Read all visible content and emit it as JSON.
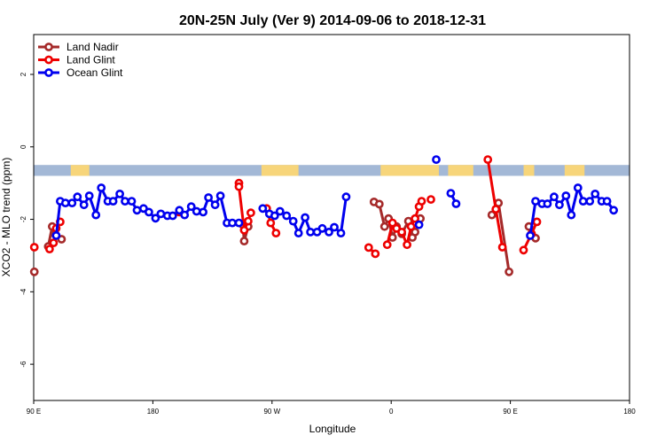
{
  "chart_data": {
    "type": "line",
    "title": "20N-25N July (Ver 9)   2014-09-06 to 2018-12-31",
    "xlabel": "Longitude",
    "ylabel": "XCO2 - MLO trend (ppm)",
    "x_ticks": [
      {
        "value": 90,
        "label": "90 E"
      },
      {
        "value": 180,
        "label": "180"
      },
      {
        "value": 270,
        "label": "90 W"
      },
      {
        "value": 360,
        "label": "0"
      },
      {
        "value": 450,
        "label": "90 E"
      },
      {
        "value": 540,
        "label": "180"
      }
    ],
    "y_ticks": [
      {
        "value": 2,
        "label": "2"
      },
      {
        "value": 0,
        "label": "0"
      },
      {
        "value": -2,
        "label": "-2"
      },
      {
        "value": -4,
        "label": "-4"
      },
      {
        "value": -6,
        "label": "-6"
      }
    ],
    "xlim": [
      90,
      540
    ],
    "ylim": [
      -7,
      3.1
    ],
    "map_band": {
      "y_top": -0.5,
      "y_bottom": -0.8,
      "ocean_color": "#a3b8d6",
      "land_color": "#f7d57a"
    },
    "legend_position": "top-left",
    "series": [
      {
        "name": "Land Nadir",
        "color": "#a52a2a",
        "segments": [
          [
            [
              90.5,
              -3.45
            ]
          ],
          [
            [
              101,
              -2.75
            ],
            [
              104,
              -2.2
            ],
            [
              106,
              -2.4
            ],
            [
              111,
              -2.55
            ]
          ],
          [
            [
              248,
              -2.15
            ],
            [
              249,
              -2.6
            ],
            [
              252,
              -2.2
            ]
          ],
          [
            [
              347,
              -1.52
            ],
            [
              351,
              -1.58
            ],
            [
              355,
              -2.2
            ],
            [
              358,
              -1.98
            ],
            [
              361,
              -2.5
            ],
            [
              364,
              -2.2
            ],
            [
              368,
              -2.4
            ],
            [
              373,
              -2.05
            ],
            [
              376,
              -2.5
            ],
            [
              378,
              -2.35
            ],
            [
              382,
              -1.98
            ]
          ],
          [
            [
              436,
              -1.88
            ],
            [
              441,
              -1.55
            ],
            [
              449,
              -3.45
            ]
          ],
          [
            [
              464,
              -2.2
            ],
            [
              469,
              -2.52
            ]
          ]
        ]
      },
      {
        "name": "Land Glint",
        "color": "#ee0000",
        "segments": [
          [
            [
              90.5,
              -2.77
            ]
          ],
          [
            [
              102,
              -2.82
            ],
            [
              105,
              -2.65
            ],
            [
              107,
              -2.25
            ],
            [
              110,
              -2.07
            ]
          ],
          [
            [
              200,
              -1.8
            ]
          ],
          [
            [
              245,
              -1.0
            ],
            [
              245,
              -1.1
            ],
            [
              249,
              -2.3
            ],
            [
              252,
              -2.05
            ],
            [
              254,
              -1.82
            ]
          ],
          [
            [
              266,
              -1.7
            ],
            [
              269,
              -2.1
            ],
            [
              273,
              -2.38
            ]
          ],
          [
            [
              343,
              -2.78
            ],
            [
              348,
              -2.95
            ]
          ],
          [
            [
              357,
              -2.7
            ],
            [
              361,
              -2.1
            ],
            [
              364,
              -2.25
            ],
            [
              368,
              -2.35
            ],
            [
              372,
              -2.7
            ],
            [
              375,
              -2.2
            ],
            [
              378,
              -1.98
            ],
            [
              381,
              -1.65
            ],
            [
              383,
              -1.5
            ]
          ],
          [
            [
              390,
              -1.45
            ]
          ],
          [
            [
              433,
              -0.35
            ],
            [
              439,
              -1.72
            ],
            [
              444,
              -2.77
            ]
          ],
          [
            [
              460,
              -2.85
            ],
            [
              466,
              -2.4
            ],
            [
              470,
              -2.07
            ]
          ]
        ]
      },
      {
        "name": "Ocean Glint",
        "color": "#0000ee",
        "segments": [
          [
            [
              107,
              -2.45
            ],
            [
              110,
              -1.5
            ],
            [
              114,
              -1.55
            ],
            [
              119,
              -1.55
            ],
            [
              123,
              -1.38
            ],
            [
              128,
              -1.6
            ],
            [
              132,
              -1.35
            ],
            [
              137,
              -1.88
            ],
            [
              141,
              -1.13
            ],
            [
              146,
              -1.5
            ],
            [
              150,
              -1.5
            ],
            [
              155,
              -1.3
            ],
            [
              159,
              -1.5
            ],
            [
              164,
              -1.5
            ],
            [
              168,
              -1.75
            ],
            [
              173,
              -1.7
            ],
            [
              177,
              -1.8
            ],
            [
              182,
              -1.97
            ],
            [
              186,
              -1.85
            ],
            [
              191,
              -1.9
            ],
            [
              195,
              -1.9
            ],
            [
              200,
              -1.75
            ],
            [
              204,
              -1.88
            ],
            [
              209,
              -1.65
            ],
            [
              213,
              -1.78
            ],
            [
              218,
              -1.8
            ],
            [
              222,
              -1.4
            ],
            [
              227,
              -1.6
            ],
            [
              231,
              -1.35
            ],
            [
              236,
              -2.1
            ],
            [
              240,
              -2.1
            ],
            [
              245,
              -2.1
            ]
          ],
          [
            [
              263,
              -1.7
            ],
            [
              268,
              -1.85
            ],
            [
              272,
              -1.9
            ],
            [
              276,
              -1.78
            ],
            [
              281,
              -1.9
            ],
            [
              286,
              -2.05
            ],
            [
              290,
              -2.38
            ],
            [
              295,
              -1.95
            ],
            [
              299,
              -2.35
            ],
            [
              304,
              -2.35
            ],
            [
              308,
              -2.25
            ],
            [
              313,
              -2.35
            ],
            [
              317,
              -2.22
            ],
            [
              322,
              -2.38
            ],
            [
              326,
              -1.38
            ]
          ],
          [
            [
              381,
              -2.15
            ]
          ],
          [
            [
              394,
              -0.35
            ]
          ],
          [
            [
              405,
              -1.28
            ],
            [
              409,
              -1.57
            ]
          ],
          [
            [
              465,
              -2.45
            ],
            [
              469,
              -1.5
            ],
            [
              474,
              -1.57
            ],
            [
              478,
              -1.57
            ],
            [
              483,
              -1.38
            ],
            [
              487,
              -1.6
            ],
            [
              492,
              -1.35
            ],
            [
              496,
              -1.88
            ],
            [
              501,
              -1.13
            ],
            [
              505,
              -1.5
            ],
            [
              510,
              -1.5
            ],
            [
              514,
              -1.3
            ],
            [
              519,
              -1.5
            ],
            [
              523,
              -1.5
            ],
            [
              528,
              -1.75
            ]
          ]
        ]
      }
    ]
  }
}
